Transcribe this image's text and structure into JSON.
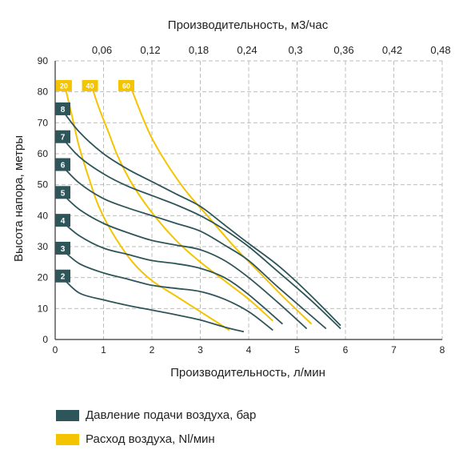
{
  "chart_data": {
    "type": "line",
    "top_axis_title": "Производительность, м3/час",
    "xlabel": "Производительность, л/мин",
    "ylabel": "Высота напора, метры",
    "xlim": [
      0,
      8
    ],
    "ylim": [
      0,
      90
    ],
    "x_ticks": [
      "0",
      "1",
      "2",
      "3",
      "4",
      "5",
      "6",
      "7",
      "8"
    ],
    "y_ticks": [
      "0",
      "10",
      "20",
      "30",
      "40",
      "50",
      "60",
      "70",
      "80",
      "90"
    ],
    "top_ticks": [
      {
        "label": "0,06",
        "x": 1
      },
      {
        "label": "0,12",
        "x": 2
      },
      {
        "label": "0,18",
        "x": 3
      },
      {
        "label": "0,24",
        "x": 4
      },
      {
        "label": "0,3",
        "x": 5
      },
      {
        "label": "0,36",
        "x": 6
      },
      {
        "label": "0,42",
        "x": 7
      },
      {
        "label": "0,48",
        "x": 8
      }
    ],
    "grid": true,
    "colors": {
      "pressure": "#2e5559",
      "air": "#f5c400",
      "grid": "#bdbdbd",
      "axis": "#333333"
    },
    "pressure_series": [
      {
        "name": "2",
        "label_y": 20.5,
        "points": [
          [
            0.15,
            20
          ],
          [
            0.5,
            15
          ],
          [
            1.0,
            12.8
          ],
          [
            1.5,
            11
          ],
          [
            2.0,
            9.5
          ],
          [
            2.5,
            8
          ],
          [
            3.0,
            6.3
          ],
          [
            3.5,
            4
          ],
          [
            3.9,
            2.5
          ]
        ]
      },
      {
        "name": "3",
        "label_y": 29.5,
        "points": [
          [
            0.15,
            29
          ],
          [
            0.5,
            24.5
          ],
          [
            1.0,
            21.5
          ],
          [
            1.5,
            19.5
          ],
          [
            2.0,
            17.5
          ],
          [
            2.5,
            16.5
          ],
          [
            3.0,
            15.5
          ],
          [
            3.5,
            13
          ],
          [
            4.0,
            9
          ],
          [
            4.5,
            3
          ]
        ]
      },
      {
        "name": "4",
        "label_y": 38.5,
        "points": [
          [
            0.15,
            38
          ],
          [
            0.5,
            33.5
          ],
          [
            1.0,
            29.5
          ],
          [
            1.5,
            27.5
          ],
          [
            2.0,
            25.5
          ],
          [
            2.5,
            24.5
          ],
          [
            3.0,
            23
          ],
          [
            3.5,
            20
          ],
          [
            4.0,
            14.5
          ],
          [
            4.7,
            5
          ]
        ]
      },
      {
        "name": "5",
        "label_y": 47.5,
        "points": [
          [
            0.15,
            47
          ],
          [
            0.5,
            42
          ],
          [
            1.0,
            37.5
          ],
          [
            1.5,
            34.5
          ],
          [
            2.0,
            32
          ],
          [
            2.5,
            30.5
          ],
          [
            3.0,
            29
          ],
          [
            3.5,
            25.5
          ],
          [
            4.0,
            20
          ],
          [
            4.6,
            12
          ],
          [
            5.2,
            3.5
          ]
        ]
      },
      {
        "name": "6",
        "label_y": 56.5,
        "points": [
          [
            0.15,
            56
          ],
          [
            0.5,
            50.5
          ],
          [
            1.0,
            45.5
          ],
          [
            1.5,
            42.5
          ],
          [
            2.0,
            40
          ],
          [
            2.5,
            37.5
          ],
          [
            3.0,
            35
          ],
          [
            3.5,
            30.5
          ],
          [
            4.0,
            25.5
          ],
          [
            4.6,
            17
          ],
          [
            5.6,
            3.5
          ]
        ]
      },
      {
        "name": "7",
        "label_y": 65.5,
        "points": [
          [
            0.15,
            65
          ],
          [
            0.5,
            59
          ],
          [
            1.0,
            53.5
          ],
          [
            1.5,
            49.5
          ],
          [
            2.0,
            46.5
          ],
          [
            2.5,
            43.5
          ],
          [
            3.0,
            40
          ],
          [
            3.5,
            35.5
          ],
          [
            4.0,
            30
          ],
          [
            4.6,
            22
          ],
          [
            5.3,
            12.5
          ],
          [
            5.9,
            3.5
          ]
        ]
      },
      {
        "name": "8",
        "label_y": 74.5,
        "points": [
          [
            0.15,
            74
          ],
          [
            0.5,
            67
          ],
          [
            1.0,
            60
          ],
          [
            1.5,
            55
          ],
          [
            2.0,
            51
          ],
          [
            2.5,
            47
          ],
          [
            3.0,
            43
          ],
          [
            3.5,
            37
          ],
          [
            4.0,
            31
          ],
          [
            4.6,
            24
          ],
          [
            5.2,
            15.5
          ],
          [
            5.9,
            4.5
          ]
        ]
      }
    ],
    "air_series": [
      {
        "name": "20",
        "label_x": 0.18,
        "points": [
          [
            0.2,
            82
          ],
          [
            0.35,
            72
          ],
          [
            0.5,
            62
          ],
          [
            0.7,
            52
          ],
          [
            0.9,
            43
          ],
          [
            1.2,
            34
          ],
          [
            1.6,
            25
          ],
          [
            2.0,
            19
          ],
          [
            2.5,
            14
          ],
          [
            3.0,
            9
          ],
          [
            3.6,
            3
          ]
        ]
      },
      {
        "name": "40",
        "label_x": 0.72,
        "points": [
          [
            0.75,
            82
          ],
          [
            0.9,
            75
          ],
          [
            1.1,
            67
          ],
          [
            1.3,
            59
          ],
          [
            1.6,
            50
          ],
          [
            2.0,
            41
          ],
          [
            2.5,
            32
          ],
          [
            3.0,
            25
          ],
          [
            3.5,
            19
          ],
          [
            4.0,
            13
          ],
          [
            4.5,
            6
          ]
        ]
      },
      {
        "name": "60",
        "label_x": 1.47,
        "points": [
          [
            1.55,
            82
          ],
          [
            1.8,
            72
          ],
          [
            2.0,
            65
          ],
          [
            2.3,
            57
          ],
          [
            2.7,
            48
          ],
          [
            3.2,
            39
          ],
          [
            3.7,
            30
          ],
          [
            4.2,
            22
          ],
          [
            4.7,
            14
          ],
          [
            5.3,
            5
          ]
        ]
      }
    ]
  },
  "legend": {
    "pressure_label": "Давление подачи воздуха, бар",
    "air_label": "Расход воздуха, Nl/мин",
    "pressure_color": "#2e5559",
    "air_color": "#f5c400"
  }
}
